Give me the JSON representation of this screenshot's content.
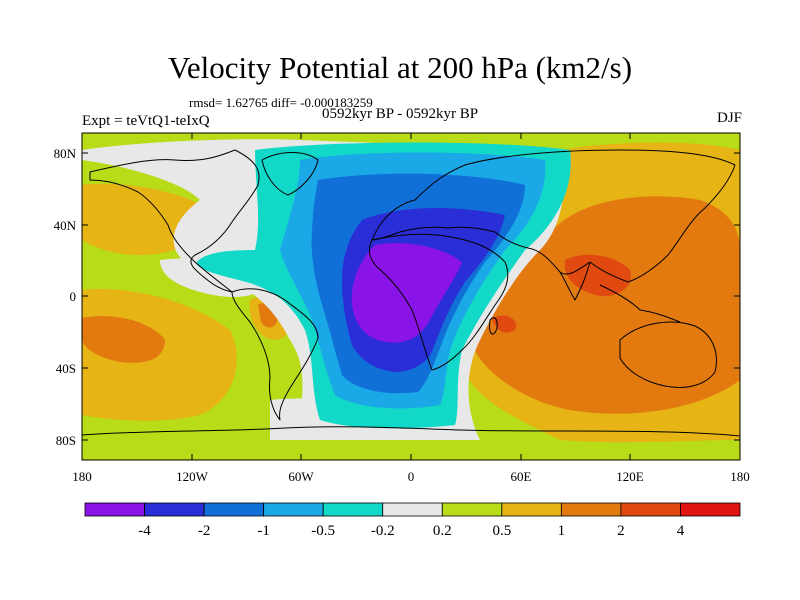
{
  "title": "Velocity Potential at 200 hPa (km2/s)",
  "stats_text": "rmsd= 1.62765 diff= -0.000183259",
  "left_label": "Expt = teVtQ1-teIxQ",
  "center_label": "0592kyr BP - 0592kyr BP",
  "right_label": "DJF",
  "lat_ticks": [
    "80N",
    "40N",
    "0",
    "40S",
    "80S"
  ],
  "lon_ticks": [
    "180",
    "120W",
    "60W",
    "0",
    "60E",
    "120E",
    "180"
  ],
  "colorbar": {
    "labels": [
      "-4",
      "-2",
      "-1",
      "-0.5",
      "-0.2",
      "0.2",
      "0.5",
      "1",
      "2",
      "4"
    ],
    "colors": [
      "#8a13e8",
      "#2a2ed6",
      "#1070d8",
      "#1aa8e6",
      "#12d8c8",
      "#e8e8e8",
      "#b8dc18",
      "#e6b414",
      "#e27a10",
      "#e04a10",
      "#e01410"
    ]
  }
}
